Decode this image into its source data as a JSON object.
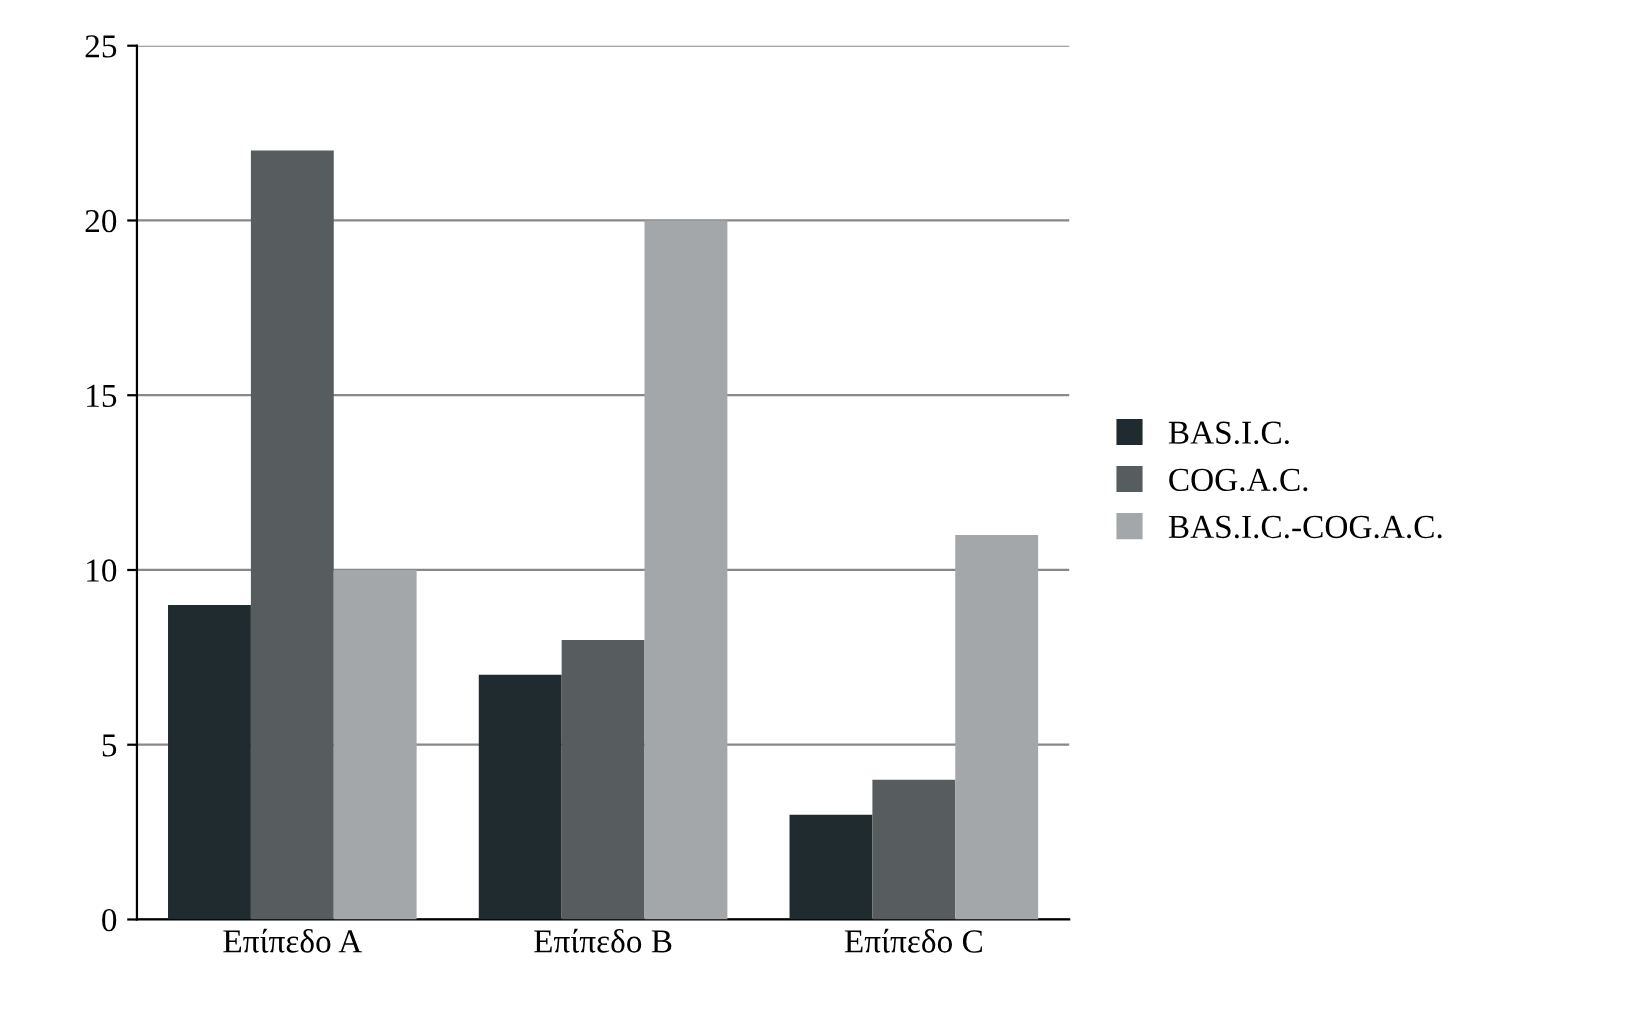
{
  "chart_data": {
    "type": "bar",
    "categories": [
      "Επίπεδο A",
      "Επίπεδο B",
      "Επίπεδο C"
    ],
    "series": [
      {
        "name": "BAS.I.C.",
        "color": "#1f2b2e",
        "values": [
          9,
          7,
          3
        ]
      },
      {
        "name": "COG.A.C.",
        "color": "#575d5f",
        "values": [
          22,
          8,
          4
        ]
      },
      {
        "name": "BAS.I.C.-COG.A.C.",
        "color": "#a4a7a9",
        "values": [
          10,
          20,
          11
        ]
      }
    ],
    "ylim": [
      0,
      25
    ],
    "yticks": [
      0,
      5,
      10,
      15,
      20,
      25
    ],
    "grid": "y",
    "legend": "right"
  }
}
